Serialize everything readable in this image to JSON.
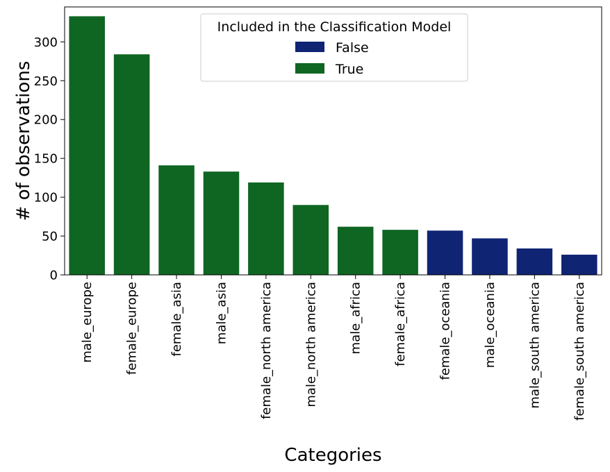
{
  "chart_data": {
    "type": "bar",
    "xlabel": "Categories",
    "ylabel": "# of observations",
    "ylim": [
      0,
      345
    ],
    "yticks": [
      0,
      50,
      100,
      150,
      200,
      250,
      300
    ],
    "categories": [
      "male_europe",
      "female_europe",
      "female_asia",
      "male_asia",
      "female_north america",
      "male_north america",
      "male_africa",
      "female_africa",
      "female_oceania",
      "male_oceania",
      "male_south america",
      "female_south america"
    ],
    "values": [
      333,
      284,
      141,
      133,
      119,
      90,
      62,
      58,
      57,
      47,
      34,
      26
    ],
    "included": [
      true,
      true,
      true,
      true,
      true,
      true,
      true,
      true,
      false,
      false,
      false,
      false
    ],
    "legend": {
      "title": "Included in the Classification Model",
      "position": "top-center",
      "entries": [
        {
          "label": "False",
          "color": "#0f2473"
        },
        {
          "label": "True",
          "color": "#0f6522"
        }
      ]
    },
    "grid": false
  }
}
